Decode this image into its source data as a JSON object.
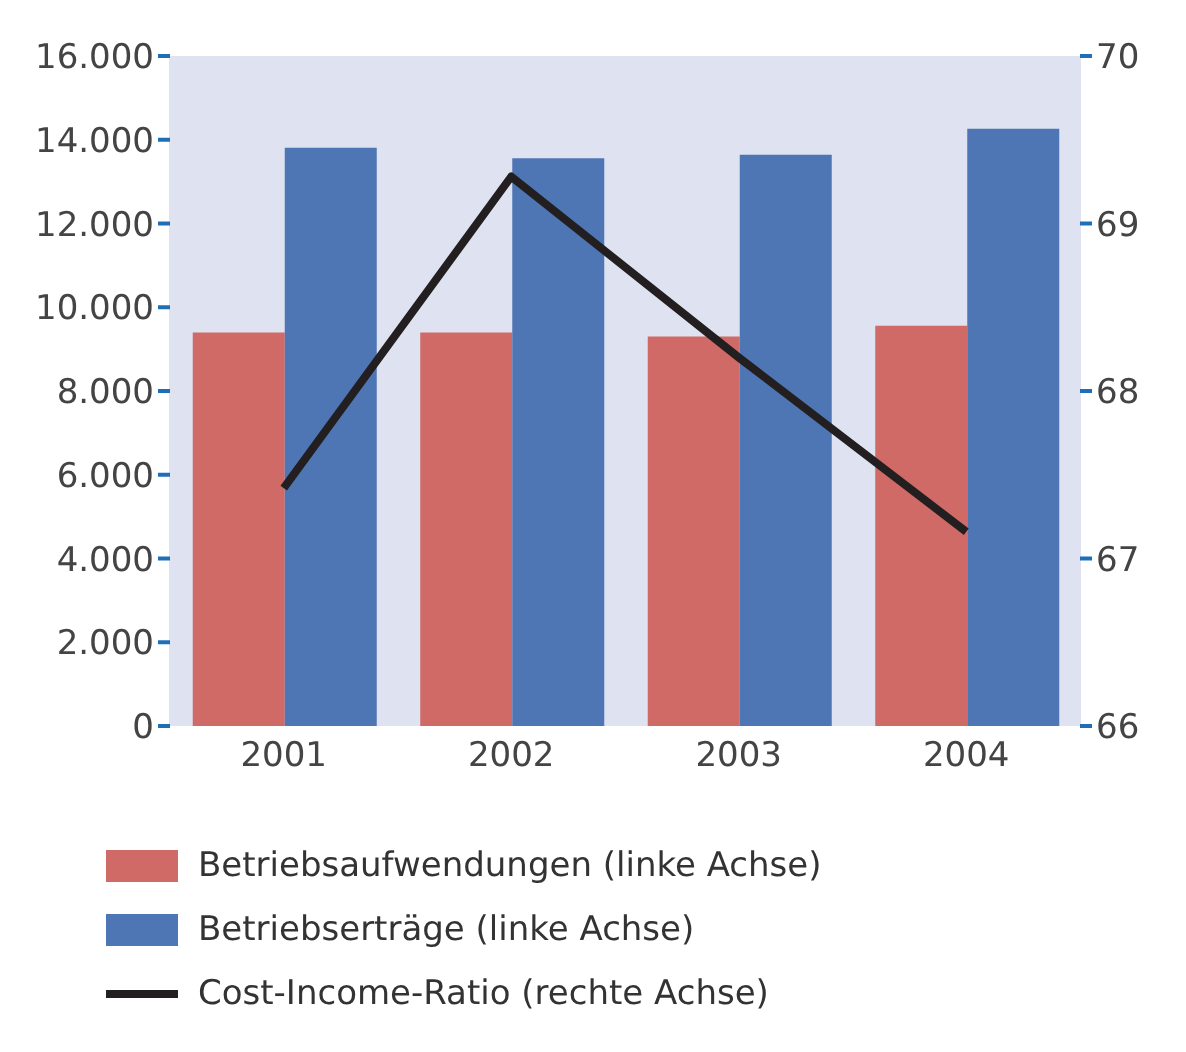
{
  "chart_data": {
    "type": "bar",
    "categories": [
      "2001",
      "2002",
      "2003",
      "2004"
    ],
    "series": [
      {
        "name": "Betriebsaufwendungen (linke Achse)",
        "color": "#cf6a66",
        "values": [
          9400,
          9400,
          9300,
          9560
        ]
      },
      {
        "name": "Betriebserträge (linke Achse)",
        "color": "#4f76b4",
        "values": [
          13810,
          13560,
          13640,
          14260
        ]
      },
      {
        "name": "Cost-Income-Ratio (rechte Achse)",
        "type": "line",
        "axis": "y2",
        "color": "#231f20",
        "values": [
          67.42,
          69.28,
          68.2,
          67.16
        ]
      }
    ],
    "ylim": [
      0,
      16000
    ],
    "yticks": [
      {
        "value": 0,
        "label": "0"
      },
      {
        "value": 2000,
        "label": "2.000"
      },
      {
        "value": 4000,
        "label": "4.000"
      },
      {
        "value": 6000,
        "label": "6.000"
      },
      {
        "value": 8000,
        "label": "8.000"
      },
      {
        "value": 10000,
        "label": "10.000"
      },
      {
        "value": 12000,
        "label": "12.000"
      },
      {
        "value": 14000,
        "label": "14.000"
      },
      {
        "value": 16000,
        "label": "16.000"
      }
    ],
    "y2lim": [
      66,
      70
    ],
    "y2ticks": [
      66,
      67,
      68,
      69,
      70
    ],
    "legend": "bottom",
    "grid": false,
    "marker": "none"
  }
}
